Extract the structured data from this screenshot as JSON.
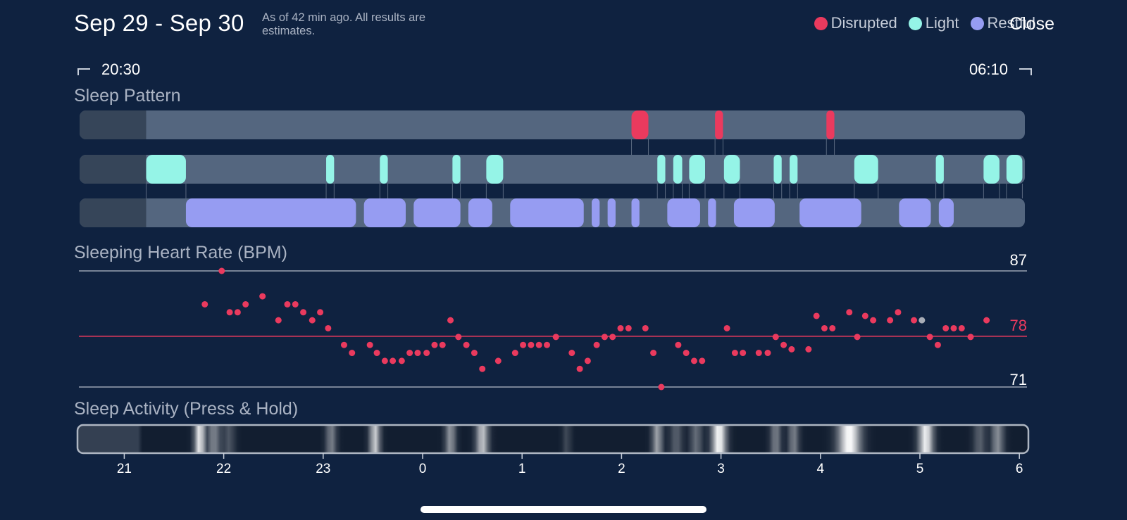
{
  "header": {
    "date_range": "Sep 29 - Sep 30",
    "note": "As of 42 min ago. All results are estimates.",
    "close_label": "Close"
  },
  "legend": [
    {
      "label": "Disrupted",
      "color": "#ea3a5e"
    },
    {
      "label": "Light",
      "color": "#95f4e7"
    },
    {
      "label": "Restful",
      "color": "#969cf2"
    }
  ],
  "time_range": {
    "start": "20:30",
    "end": "06:10"
  },
  "sleep_pattern": {
    "title": "Sleep Pattern",
    "tracks": [
      {
        "stage": "Disrupted",
        "color": "#ea3a5e",
        "segments_hours": [
          [
            2.94,
            3.02
          ],
          [
            2.1,
            2.27
          ],
          [
            4.06,
            4.14
          ]
        ]
      },
      {
        "stage": "Light",
        "color": "#95f4e7",
        "segments_hours": [
          [
            -2.78,
            -2.38
          ],
          [
            -0.97,
            -0.89
          ],
          [
            -0.43,
            -0.35
          ],
          [
            0.3,
            0.38
          ],
          [
            0.64,
            0.81
          ],
          [
            2.36,
            2.44
          ],
          [
            2.52,
            2.61
          ],
          [
            2.68,
            2.84
          ],
          [
            3.03,
            3.19
          ],
          [
            3.53,
            3.61
          ],
          [
            3.69,
            3.77
          ],
          [
            4.34,
            4.58
          ],
          [
            5.16,
            5.24
          ],
          [
            5.64,
            5.8
          ],
          [
            5.87,
            6.03
          ]
        ]
      },
      {
        "stage": "Restful",
        "color": "#969cf2",
        "segments_hours": [
          [
            -2.38,
            -0.67
          ],
          [
            -0.59,
            -0.17
          ],
          [
            -0.09,
            0.38
          ],
          [
            0.46,
            0.7
          ],
          [
            0.88,
            1.62
          ],
          [
            1.7,
            1.78
          ],
          [
            1.86,
            1.94
          ],
          [
            2.1,
            2.18
          ],
          [
            2.46,
            2.79
          ],
          [
            2.87,
            2.95
          ],
          [
            3.13,
            3.54
          ],
          [
            3.79,
            4.41
          ],
          [
            4.79,
            5.11
          ],
          [
            5.19,
            5.34
          ]
        ]
      }
    ]
  },
  "heart_rate": {
    "title": "Sleeping Heart Rate (BPM)",
    "max_label": "87",
    "avg_label": "78",
    "min_label": "71"
  },
  "activity": {
    "title": "Sleep Activity (Press & Hold)"
  },
  "axis": {
    "ticks": [
      "21",
      "22",
      "23",
      "0",
      "1",
      "2",
      "3",
      "4",
      "5",
      "6"
    ]
  },
  "colors": {
    "background": "#0f2240",
    "track": "#54667f",
    "inactive": "#364559",
    "accent": "#ea3a5e",
    "hr_dot_highlight": "#a8adb7"
  },
  "chart_data": {
    "type": "scatter",
    "title": "Sleeping Heart Rate (BPM)",
    "xlabel": "",
    "ylabel": "",
    "x_unit": "hours after midnight Sep 30 (negative = before midnight)",
    "xlim": [
      -3.5,
      6
    ],
    "ylim": [
      71,
      87
    ],
    "reference_lines": [
      {
        "label": "87",
        "value": 87
      },
      {
        "label": "78",
        "value": 78
      },
      {
        "label": "71",
        "value": 71
      }
    ],
    "series": [
      {
        "values": [
          [
            -2.19,
            82.4
          ],
          [
            -2.02,
            87.0
          ],
          [
            -1.94,
            81.3
          ],
          [
            -1.86,
            81.3
          ],
          [
            -1.78,
            82.4
          ],
          [
            -1.61,
            83.5
          ],
          [
            -1.45,
            80.2
          ],
          [
            -1.36,
            82.4
          ],
          [
            -1.28,
            82.4
          ],
          [
            -1.2,
            81.3
          ],
          [
            -1.11,
            80.2
          ],
          [
            -1.03,
            81.3
          ],
          [
            -0.95,
            79.1
          ],
          [
            -0.79,
            76.8
          ],
          [
            -0.71,
            75.7
          ],
          [
            -0.53,
            76.8
          ],
          [
            -0.46,
            75.7
          ],
          [
            -0.38,
            74.6
          ],
          [
            -0.3,
            74.6
          ],
          [
            -0.21,
            74.6
          ],
          [
            -0.13,
            75.7
          ],
          [
            -0.05,
            75.7
          ],
          [
            0.04,
            75.7
          ],
          [
            0.12,
            76.8
          ],
          [
            0.2,
            76.8
          ],
          [
            0.28,
            80.2
          ],
          [
            0.36,
            77.9
          ],
          [
            0.44,
            76.8
          ],
          [
            0.52,
            75.7
          ],
          [
            0.6,
            73.5
          ],
          [
            0.76,
            74.6
          ],
          [
            0.93,
            75.7
          ],
          [
            1.01,
            76.8
          ],
          [
            1.09,
            76.8
          ],
          [
            1.17,
            76.8
          ],
          [
            1.25,
            76.8
          ],
          [
            1.34,
            77.9
          ],
          [
            1.5,
            75.7
          ],
          [
            1.58,
            73.5
          ],
          [
            1.66,
            74.6
          ],
          [
            1.75,
            76.8
          ],
          [
            1.83,
            77.9
          ],
          [
            1.91,
            77.9
          ],
          [
            1.99,
            79.1
          ],
          [
            2.07,
            79.1
          ],
          [
            2.24,
            79.1
          ],
          [
            2.32,
            75.7
          ],
          [
            2.4,
            71.0
          ],
          [
            2.57,
            76.8
          ],
          [
            2.65,
            75.7
          ],
          [
            2.73,
            74.6
          ],
          [
            2.81,
            74.6
          ],
          [
            3.06,
            79.1
          ],
          [
            3.14,
            75.7
          ],
          [
            3.22,
            75.7
          ],
          [
            3.38,
            75.7
          ],
          [
            3.47,
            75.7
          ],
          [
            3.55,
            77.9
          ],
          [
            3.63,
            76.8
          ],
          [
            3.71,
            76.2
          ],
          [
            3.88,
            76.2
          ],
          [
            3.96,
            80.8
          ],
          [
            4.04,
            79.1
          ],
          [
            4.12,
            79.1
          ],
          [
            4.29,
            81.3
          ],
          [
            4.37,
            77.9
          ],
          [
            4.45,
            80.8
          ],
          [
            4.53,
            80.2
          ],
          [
            4.7,
            80.2
          ],
          [
            4.78,
            81.3
          ],
          [
            4.94,
            80.2
          ],
          [
            5.1,
            77.9
          ],
          [
            5.18,
            76.8
          ],
          [
            5.26,
            79.1
          ],
          [
            5.34,
            79.1
          ],
          [
            5.42,
            79.1
          ],
          [
            5.51,
            77.9
          ],
          [
            5.67,
            80.2
          ]
        ],
        "highlight": [
          5.02,
          80.2
        ]
      }
    ]
  }
}
